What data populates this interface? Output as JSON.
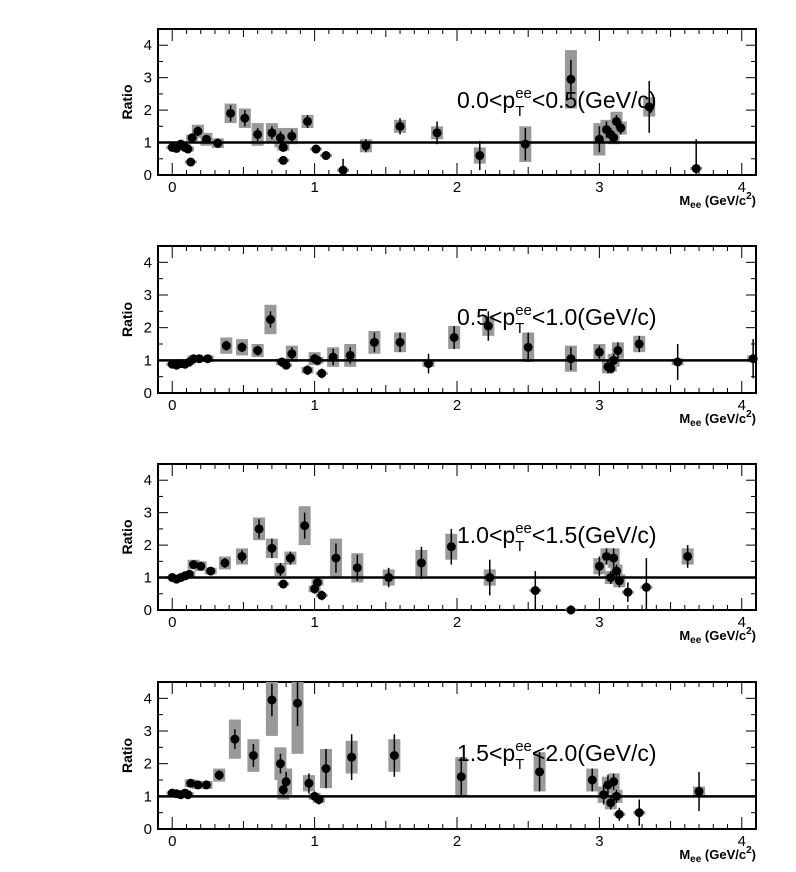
{
  "chart_data": [
    {
      "type": "scatter",
      "panel_label": {
        "pre": "0.0<p",
        "sup": "ee",
        "sub": "T",
        "post": "<0.5(GeV/c)"
      },
      "ylabel": "Ratio",
      "xlabel": {
        "main": "M",
        "sub": "ee",
        "unit_pre": " (GeV/c",
        "unit_sup": "2",
        "unit_post": ")"
      },
      "xlim": [
        -0.1,
        4.1
      ],
      "ylim": [
        0,
        4.5
      ],
      "xticks": [
        0,
        1,
        2,
        3,
        4
      ],
      "yticks": [
        0,
        1,
        2,
        3,
        4
      ],
      "reference_line": 1,
      "points": [
        {
          "x": 0.0,
          "y": 0.85,
          "ey": 0.08,
          "sys": 0.05
        },
        {
          "x": 0.03,
          "y": 0.82,
          "ey": 0.06,
          "sys": 0.05
        },
        {
          "x": 0.06,
          "y": 0.95,
          "ey": 0.08,
          "sys": 0.08
        },
        {
          "x": 0.09,
          "y": 0.85,
          "ey": 0.06,
          "sys": 0.1
        },
        {
          "x": 0.11,
          "y": 0.8,
          "ey": 0.06,
          "sys": 0.08
        },
        {
          "x": 0.14,
          "y": 1.15,
          "ey": 0.12,
          "sys": 0.1
        },
        {
          "x": 0.13,
          "y": 0.4,
          "ey": 0.1,
          "sys": 0.05
        },
        {
          "x": 0.18,
          "y": 1.35,
          "ey": 0.15,
          "sys": 0.2
        },
        {
          "x": 0.24,
          "y": 1.1,
          "ey": 0.12,
          "sys": 0.2
        },
        {
          "x": 0.32,
          "y": 0.98,
          "ey": 0.15,
          "sys": 0.15
        },
        {
          "x": 0.41,
          "y": 1.9,
          "ey": 0.25,
          "sys": 0.3
        },
        {
          "x": 0.51,
          "y": 1.75,
          "ey": 0.25,
          "sys": 0.3
        },
        {
          "x": 0.6,
          "y": 1.25,
          "ey": 0.2,
          "sys": 0.35
        },
        {
          "x": 0.7,
          "y": 1.3,
          "ey": 0.2,
          "sys": 0.3
        },
        {
          "x": 0.76,
          "y": 1.15,
          "ey": 0.2,
          "sys": 0.3
        },
        {
          "x": 0.78,
          "y": 0.85,
          "ey": 0.12,
          "sys": 0.1
        },
        {
          "x": 0.78,
          "y": 0.45,
          "ey": 0.08,
          "sys": 0.05
        },
        {
          "x": 0.84,
          "y": 1.2,
          "ey": 0.2,
          "sys": 0.25
        },
        {
          "x": 0.95,
          "y": 1.65,
          "ey": 0.2,
          "sys": 0.2
        },
        {
          "x": 1.01,
          "y": 0.8,
          "ey": 0.1,
          "sys": 0.05
        },
        {
          "x": 1.08,
          "y": 0.6,
          "ey": 0.12,
          "sys": 0.05
        },
        {
          "x": 1.2,
          "y": 0.15,
          "ey": 0.35,
          "sys": 0.05
        },
        {
          "x": 1.36,
          "y": 0.9,
          "ey": 0.2,
          "sys": 0.2
        },
        {
          "x": 1.6,
          "y": 1.5,
          "ey": 0.25,
          "sys": 0.2
        },
        {
          "x": 1.86,
          "y": 1.3,
          "ey": 0.35,
          "sys": 0.2
        },
        {
          "x": 2.16,
          "y": 0.6,
          "ey": 0.45,
          "sys": 0.25
        },
        {
          "x": 2.48,
          "y": 0.95,
          "ey": 0.5,
          "sys": 0.55
        },
        {
          "x": 2.8,
          "y": 2.95,
          "ey": 0.6,
          "sys": 0.9
        },
        {
          "x": 3.0,
          "y": 1.1,
          "ey": 0.4,
          "sys": 0.5
        },
        {
          "x": 3.05,
          "y": 1.4,
          "ey": 0.25,
          "sys": 0.3
        },
        {
          "x": 3.08,
          "y": 1.25,
          "ey": 0.2,
          "sys": 0.25
        },
        {
          "x": 3.1,
          "y": 1.15,
          "ey": 0.15,
          "sys": 0.2
        },
        {
          "x": 3.12,
          "y": 1.65,
          "ey": 0.2,
          "sys": 0.3
        },
        {
          "x": 3.15,
          "y": 1.45,
          "ey": 0.2,
          "sys": 0.2
        },
        {
          "x": 3.35,
          "y": 2.1,
          "ey": 0.8,
          "sys": 0.3
        },
        {
          "x": 3.68,
          "y": 0.2,
          "ey": 0.9,
          "sys": 0.05
        }
      ]
    },
    {
      "type": "scatter",
      "panel_label": {
        "pre": "0.5<p",
        "sup": "ee",
        "sub": "T",
        "post": "<1.0(GeV/c)"
      },
      "ylabel": "Ratio",
      "xlabel": {
        "main": "M",
        "sub": "ee",
        "unit_pre": " (GeV/c",
        "unit_sup": "2",
        "unit_post": ")"
      },
      "xlim": [
        -0.1,
        4.1
      ],
      "ylim": [
        0,
        4.5
      ],
      "xticks": [
        0,
        1,
        2,
        3,
        4
      ],
      "yticks": [
        0,
        1,
        2,
        3,
        4
      ],
      "reference_line": 1,
      "points": [
        {
          "x": 0.0,
          "y": 0.88,
          "ey": 0.05,
          "sys": 0.05
        },
        {
          "x": 0.03,
          "y": 0.85,
          "ey": 0.05,
          "sys": 0.05
        },
        {
          "x": 0.06,
          "y": 0.9,
          "ey": 0.05,
          "sys": 0.06
        },
        {
          "x": 0.09,
          "y": 0.88,
          "ey": 0.05,
          "sys": 0.08
        },
        {
          "x": 0.12,
          "y": 0.95,
          "ey": 0.06,
          "sys": 0.08
        },
        {
          "x": 0.15,
          "y": 1.05,
          "ey": 0.08,
          "sys": 0.1
        },
        {
          "x": 0.19,
          "y": 1.05,
          "ey": 0.08,
          "sys": 0.1
        },
        {
          "x": 0.25,
          "y": 1.05,
          "ey": 0.08,
          "sys": 0.1
        },
        {
          "x": 0.38,
          "y": 1.45,
          "ey": 0.15,
          "sys": 0.25
        },
        {
          "x": 0.49,
          "y": 1.4,
          "ey": 0.15,
          "sys": 0.25
        },
        {
          "x": 0.6,
          "y": 1.3,
          "ey": 0.15,
          "sys": 0.2
        },
        {
          "x": 0.69,
          "y": 2.25,
          "ey": 0.25,
          "sys": 0.45
        },
        {
          "x": 0.77,
          "y": 0.95,
          "ey": 0.1,
          "sys": 0.1
        },
        {
          "x": 0.8,
          "y": 0.85,
          "ey": 0.1,
          "sys": 0.05
        },
        {
          "x": 0.84,
          "y": 1.2,
          "ey": 0.2,
          "sys": 0.25
        },
        {
          "x": 0.95,
          "y": 0.7,
          "ey": 0.15,
          "sys": 0.1
        },
        {
          "x": 1.0,
          "y": 1.05,
          "ey": 0.15,
          "sys": 0.2
        },
        {
          "x": 1.02,
          "y": 1.0,
          "ey": 0.15,
          "sys": 0.1
        },
        {
          "x": 1.05,
          "y": 0.6,
          "ey": 0.15,
          "sys": 0.05
        },
        {
          "x": 1.13,
          "y": 1.1,
          "ey": 0.25,
          "sys": 0.3
        },
        {
          "x": 1.25,
          "y": 1.15,
          "ey": 0.25,
          "sys": 0.35
        },
        {
          "x": 1.42,
          "y": 1.55,
          "ey": 0.3,
          "sys": 0.35
        },
        {
          "x": 1.6,
          "y": 1.55,
          "ey": 0.3,
          "sys": 0.3
        },
        {
          "x": 1.8,
          "y": 0.9,
          "ey": 0.3,
          "sys": 0.1
        },
        {
          "x": 1.98,
          "y": 1.7,
          "ey": 0.35,
          "sys": 0.35
        },
        {
          "x": 2.22,
          "y": 2.05,
          "ey": 0.45,
          "sys": 0.3
        },
        {
          "x": 2.5,
          "y": 1.4,
          "ey": 0.45,
          "sys": 0.45
        },
        {
          "x": 2.8,
          "y": 1.05,
          "ey": 0.35,
          "sys": 0.4
        },
        {
          "x": 3.0,
          "y": 1.25,
          "ey": 0.2,
          "sys": 0.25
        },
        {
          "x": 3.06,
          "y": 0.8,
          "ey": 0.2,
          "sys": 0.2
        },
        {
          "x": 3.08,
          "y": 0.75,
          "ey": 0.15,
          "sys": 0.1
        },
        {
          "x": 3.1,
          "y": 1.0,
          "ey": 0.2,
          "sys": 0.2
        },
        {
          "x": 3.13,
          "y": 1.3,
          "ey": 0.25,
          "sys": 0.25
        },
        {
          "x": 3.28,
          "y": 1.5,
          "ey": 0.25,
          "sys": 0.25
        },
        {
          "x": 3.55,
          "y": 0.95,
          "ey": 0.55,
          "sys": 0.1
        },
        {
          "x": 4.08,
          "y": 1.05,
          "ey": 0.6,
          "sys": 0.1
        }
      ]
    },
    {
      "type": "scatter",
      "panel_label": {
        "pre": "1.0<p",
        "sup": "ee",
        "sub": "T",
        "post": "<1.5(GeV/c)"
      },
      "ylabel": "Ratio",
      "xlabel": {
        "main": "M",
        "sub": "ee",
        "unit_pre": " (GeV/c",
        "unit_sup": "2",
        "unit_post": ")"
      },
      "xlim": [
        -0.1,
        4.1
      ],
      "ylim": [
        0,
        4.5
      ],
      "xticks": [
        0,
        1,
        2,
        3,
        4
      ],
      "yticks": [
        0,
        1,
        2,
        3,
        4
      ],
      "reference_line": 1,
      "points": [
        {
          "x": 0.0,
          "y": 1.0,
          "ey": 0.05,
          "sys": 0.05
        },
        {
          "x": 0.03,
          "y": 0.95,
          "ey": 0.05,
          "sys": 0.05
        },
        {
          "x": 0.06,
          "y": 1.0,
          "ey": 0.05,
          "sys": 0.06
        },
        {
          "x": 0.09,
          "y": 1.05,
          "ey": 0.06,
          "sys": 0.08
        },
        {
          "x": 0.12,
          "y": 1.1,
          "ey": 0.08,
          "sys": 0.1
        },
        {
          "x": 0.15,
          "y": 1.4,
          "ey": 0.1,
          "sys": 0.15
        },
        {
          "x": 0.2,
          "y": 1.35,
          "ey": 0.1,
          "sys": 0.15
        },
        {
          "x": 0.27,
          "y": 1.2,
          "ey": 0.1,
          "sys": 0.1
        },
        {
          "x": 0.37,
          "y": 1.45,
          "ey": 0.15,
          "sys": 0.2
        },
        {
          "x": 0.49,
          "y": 1.65,
          "ey": 0.2,
          "sys": 0.25
        },
        {
          "x": 0.61,
          "y": 2.5,
          "ey": 0.3,
          "sys": 0.35
        },
        {
          "x": 0.7,
          "y": 1.9,
          "ey": 0.3,
          "sys": 0.3
        },
        {
          "x": 0.76,
          "y": 1.25,
          "ey": 0.2,
          "sys": 0.2
        },
        {
          "x": 0.78,
          "y": 0.8,
          "ey": 0.1,
          "sys": 0.05
        },
        {
          "x": 0.83,
          "y": 1.6,
          "ey": 0.2,
          "sys": 0.2
        },
        {
          "x": 0.93,
          "y": 2.6,
          "ey": 0.4,
          "sys": 0.6
        },
        {
          "x": 1.0,
          "y": 0.65,
          "ey": 0.15,
          "sys": 0.1
        },
        {
          "x": 1.02,
          "y": 0.85,
          "ey": 0.15,
          "sys": 0.1
        },
        {
          "x": 1.05,
          "y": 0.45,
          "ey": 0.15,
          "sys": 0.05
        },
        {
          "x": 1.15,
          "y": 1.6,
          "ey": 0.45,
          "sys": 0.6
        },
        {
          "x": 1.3,
          "y": 1.3,
          "ey": 0.4,
          "sys": 0.45
        },
        {
          "x": 1.52,
          "y": 1.0,
          "ey": 0.3,
          "sys": 0.25
        },
        {
          "x": 1.75,
          "y": 1.45,
          "ey": 0.5,
          "sys": 0.4
        },
        {
          "x": 1.96,
          "y": 1.95,
          "ey": 0.55,
          "sys": 0.4
        },
        {
          "x": 2.23,
          "y": 1.0,
          "ey": 0.55,
          "sys": 0.25
        },
        {
          "x": 2.55,
          "y": 0.6,
          "ey": 0.6,
          "sys": 0.05
        },
        {
          "x": 2.8,
          "y": 0.0,
          "ey": 0.05,
          "sys": 0.05
        },
        {
          "x": 3.0,
          "y": 1.35,
          "ey": 0.3,
          "sys": 0.25
        },
        {
          "x": 3.05,
          "y": 1.65,
          "ey": 0.25,
          "sys": 0.25
        },
        {
          "x": 3.08,
          "y": 1.0,
          "ey": 0.2,
          "sys": 0.2
        },
        {
          "x": 3.1,
          "y": 1.6,
          "ey": 0.3,
          "sys": 0.3
        },
        {
          "x": 3.12,
          "y": 1.2,
          "ey": 0.2,
          "sys": 0.2
        },
        {
          "x": 3.14,
          "y": 0.9,
          "ey": 0.2,
          "sys": 0.2
        },
        {
          "x": 3.2,
          "y": 0.55,
          "ey": 0.3,
          "sys": 0.05
        },
        {
          "x": 3.33,
          "y": 0.7,
          "ey": 0.9,
          "sys": 0.05
        },
        {
          "x": 3.62,
          "y": 1.65,
          "ey": 0.35,
          "sys": 0.25
        }
      ]
    },
    {
      "type": "scatter",
      "panel_label": {
        "pre": "1.5<p",
        "sup": "ee",
        "sub": "T",
        "post": "<2.0(GeV/c)"
      },
      "ylabel": "Ratio",
      "xlabel": {
        "main": "M",
        "sub": "ee",
        "unit_pre": " (GeV/c",
        "unit_sup": "2",
        "unit_post": ")"
      },
      "xlim": [
        -0.1,
        4.1
      ],
      "ylim": [
        0,
        4.5
      ],
      "xticks": [
        0,
        1,
        2,
        3,
        4
      ],
      "yticks": [
        0,
        1,
        2,
        3,
        4
      ],
      "reference_line": 1,
      "points": [
        {
          "x": 0.0,
          "y": 1.1,
          "ey": 0.05,
          "sys": 0.05
        },
        {
          "x": 0.03,
          "y": 1.08,
          "ey": 0.05,
          "sys": 0.05
        },
        {
          "x": 0.06,
          "y": 1.05,
          "ey": 0.05,
          "sys": 0.06
        },
        {
          "x": 0.09,
          "y": 1.1,
          "ey": 0.06,
          "sys": 0.08
        },
        {
          "x": 0.11,
          "y": 1.05,
          "ey": 0.06,
          "sys": 0.08
        },
        {
          "x": 0.13,
          "y": 1.4,
          "ey": 0.1,
          "sys": 0.12
        },
        {
          "x": 0.18,
          "y": 1.35,
          "ey": 0.1,
          "sys": 0.12
        },
        {
          "x": 0.24,
          "y": 1.35,
          "ey": 0.1,
          "sys": 0.12
        },
        {
          "x": 0.33,
          "y": 1.65,
          "ey": 0.15,
          "sys": 0.2
        },
        {
          "x": 0.44,
          "y": 2.75,
          "ey": 0.3,
          "sys": 0.6
        },
        {
          "x": 0.57,
          "y": 2.25,
          "ey": 0.35,
          "sys": 0.5
        },
        {
          "x": 0.7,
          "y": 3.95,
          "ey": 0.5,
          "sys": 1.1
        },
        {
          "x": 0.76,
          "y": 2.0,
          "ey": 0.3,
          "sys": 0.5
        },
        {
          "x": 0.78,
          "y": 1.2,
          "ey": 0.2,
          "sys": 0.3
        },
        {
          "x": 0.8,
          "y": 1.45,
          "ey": 0.3,
          "sys": 0.4
        },
        {
          "x": 0.88,
          "y": 3.85,
          "ey": 0.7,
          "sys": 1.55
        },
        {
          "x": 0.96,
          "y": 1.4,
          "ey": 0.3,
          "sys": 0.25
        },
        {
          "x": 1.0,
          "y": 1.0,
          "ey": 0.15,
          "sys": 0.1
        },
        {
          "x": 1.03,
          "y": 0.9,
          "ey": 0.15,
          "sys": 0.1
        },
        {
          "x": 1.08,
          "y": 1.85,
          "ey": 0.6,
          "sys": 0.6
        },
        {
          "x": 1.26,
          "y": 2.2,
          "ey": 0.7,
          "sys": 0.5
        },
        {
          "x": 1.56,
          "y": 2.25,
          "ey": 0.65,
          "sys": 0.5
        },
        {
          "x": 2.03,
          "y": 1.6,
          "ey": 0.6,
          "sys": 0.6
        },
        {
          "x": 2.58,
          "y": 1.75,
          "ey": 0.6,
          "sys": 0.6
        },
        {
          "x": 2.95,
          "y": 1.5,
          "ey": 0.35,
          "sys": 0.35
        },
        {
          "x": 3.03,
          "y": 1.05,
          "ey": 0.3,
          "sys": 0.25
        },
        {
          "x": 3.06,
          "y": 1.35,
          "ey": 0.3,
          "sys": 0.25
        },
        {
          "x": 3.08,
          "y": 0.8,
          "ey": 0.2,
          "sys": 0.2
        },
        {
          "x": 3.1,
          "y": 1.45,
          "ey": 0.25,
          "sys": 0.25
        },
        {
          "x": 3.12,
          "y": 1.0,
          "ey": 0.2,
          "sys": 0.2
        },
        {
          "x": 3.14,
          "y": 0.45,
          "ey": 0.2,
          "sys": 0.05
        },
        {
          "x": 3.28,
          "y": 0.5,
          "ey": 0.4,
          "sys": 0.05
        },
        {
          "x": 3.7,
          "y": 1.15,
          "ey": 0.6,
          "sys": 0.15
        }
      ]
    }
  ]
}
